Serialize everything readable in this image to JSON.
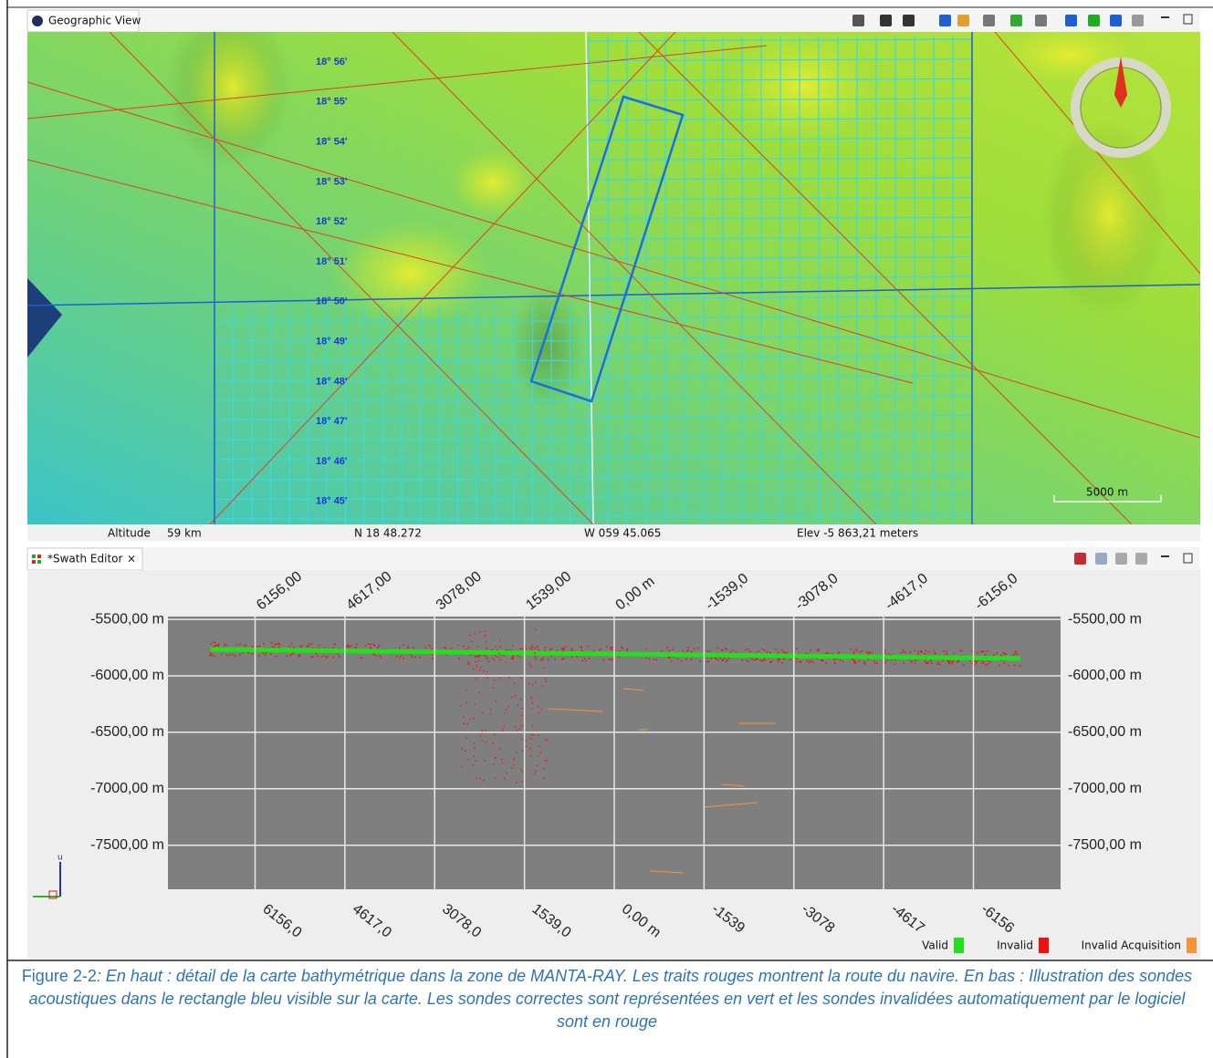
{
  "geographic_view": {
    "tab_title": "Geographic View",
    "latitude_labels": [
      "18° 56'",
      "18° 55'",
      "18° 54'",
      "18° 53'",
      "18° 52'",
      "18° 51'",
      "18° 50'",
      "18° 49'",
      "18° 48'",
      "18° 47'",
      "18° 46'",
      "18° 45'"
    ],
    "scale_label": "5000 m",
    "status_bar": {
      "altitude_label": "Altitude",
      "altitude": "59 km",
      "latitude": "N 18 48.272",
      "longitude": "W 059 45.065",
      "elevation": "Elev -5 863,21 meters"
    }
  },
  "swath_editor": {
    "tab_title": "*Swath Editor"
  },
  "chart_data": {
    "type": "scatter",
    "xlim": [
      7650,
      -7650
    ],
    "ylim": [
      -7890,
      -5475
    ],
    "x2ticks": [
      {
        "value": 6156,
        "label": "6156,00"
      },
      {
        "value": 4617,
        "label": "4617,00"
      },
      {
        "value": 3078,
        "label": "3078,00"
      },
      {
        "value": 1539,
        "label": "1539,00"
      },
      {
        "value": 0,
        "label": "0,00 m"
      },
      {
        "value": -1539,
        "label": "-1539,0"
      },
      {
        "value": -3078,
        "label": "-3078,0"
      },
      {
        "value": -4617,
        "label": "-4617,0"
      },
      {
        "value": -6156,
        "label": "-6156,0"
      }
    ],
    "xticks": [
      {
        "value": 6156,
        "label": "6156,0"
      },
      {
        "value": 4617,
        "label": "4617,0"
      },
      {
        "value": 3078,
        "label": "3078,0"
      },
      {
        "value": 1539,
        "label": "1539,0"
      },
      {
        "value": 0,
        "label": "0,00 m"
      },
      {
        "value": -1539,
        "label": "-1539"
      },
      {
        "value": -3078,
        "label": "-3078"
      },
      {
        "value": -4617,
        "label": "-4617"
      },
      {
        "value": -6156,
        "label": "-6156"
      }
    ],
    "yticks": [
      {
        "value": -5500,
        "label": "-5500,00 m"
      },
      {
        "value": -6000,
        "label": "-6000,00 m"
      },
      {
        "value": -6500,
        "label": "-6500,00 m"
      },
      {
        "value": -7000,
        "label": "-7000,00 m"
      },
      {
        "value": -7500,
        "label": "-7500,00 m"
      }
    ],
    "grid": true,
    "series": [
      {
        "name": "Valid",
        "color": "#22e01e"
      },
      {
        "name": "Invalid",
        "color": "#ee1111"
      },
      {
        "name": "Invalid Acquisition",
        "color": "#f5943a"
      }
    ]
  },
  "caption": {
    "label": "Figure 2-2",
    "text": ": En haut : détail de la carte bathymétrique dans la zone de MANTA-RAY.  Les traits rouges montrent la route du navire. En bas : Illustration des sondes acoustiques dans le rectangle bleu visible sur la carte. Les sondes correctes sont représentées en vert et les sondes invalidées automatiquement par le logiciel sont en rouge"
  }
}
